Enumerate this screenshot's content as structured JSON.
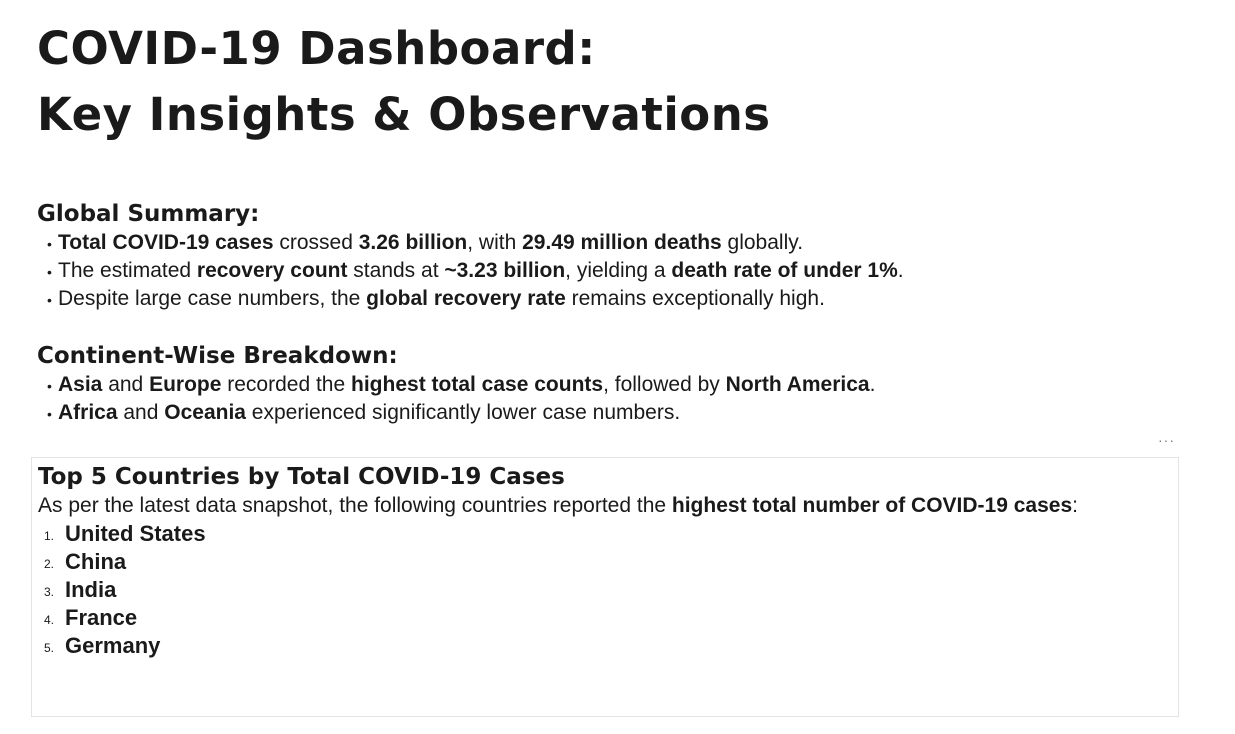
{
  "title": {
    "line1": "COVID-19 Dashboard:",
    "line2": "Key Insights & Observations"
  },
  "global_summary": {
    "heading": "Global Summary:",
    "bullets": [
      {
        "b1": "Total COVID-19 cases",
        "t1": " crossed ",
        "b2": "3.26 billion",
        "t2": ", with ",
        "b3": "29.49 million deaths",
        "t3": " globally."
      },
      {
        "t0": "The estimated ",
        "b1": "recovery count",
        "t1": " stands at ",
        "b2": "~3.23 billion",
        "t2": ", yielding a ",
        "b3": "death rate of under 1%",
        "t3": "."
      },
      {
        "t0": "Despite large case numbers, the ",
        "b1": "global recovery rate",
        "t1": " remains exceptionally high."
      }
    ]
  },
  "continent_breakdown": {
    "heading": "Continent-Wise Breakdown:",
    "bullets": [
      {
        "b1": "Asia",
        "t1": " and ",
        "b2": "Europe",
        "t2": " recorded the ",
        "b3": "highest total case counts",
        "t3": ", followed by ",
        "b4": "North America",
        "t4": "."
      },
      {
        "b1": "Africa",
        "t1": " and ",
        "b2": "Oceania",
        "t2": " experienced significantly lower case numbers."
      }
    ]
  },
  "more_icon": "···",
  "top_countries": {
    "heading": "Top 5 Countries by Total COVID-19 Cases",
    "intro": "As per the latest data snapshot, the following countries reported the ",
    "intro_bold": "highest total number of COVID-19 cases",
    "intro_end": ":",
    "items": [
      {
        "num": "1.",
        "name": "United States"
      },
      {
        "num": "2.",
        "name": "China"
      },
      {
        "num": "3.",
        "name": "India"
      },
      {
        "num": "4.",
        "name": "France"
      },
      {
        "num": "5.",
        "name": "Germany"
      }
    ]
  }
}
